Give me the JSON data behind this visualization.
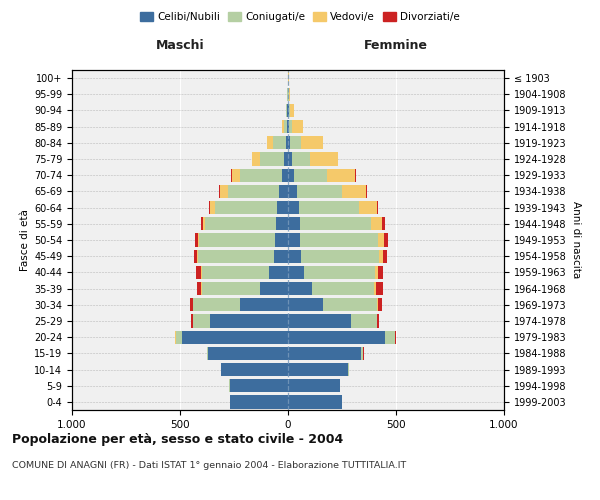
{
  "age_groups": [
    "0-4",
    "5-9",
    "10-14",
    "15-19",
    "20-24",
    "25-29",
    "30-34",
    "35-39",
    "40-44",
    "45-49",
    "50-54",
    "55-59",
    "60-64",
    "65-69",
    "70-74",
    "75-79",
    "80-84",
    "85-89",
    "90-94",
    "95-99",
    "100+"
  ],
  "birth_years": [
    "1999-2003",
    "1994-1998",
    "1989-1993",
    "1984-1988",
    "1979-1983",
    "1974-1978",
    "1969-1973",
    "1964-1968",
    "1959-1963",
    "1954-1958",
    "1949-1953",
    "1944-1948",
    "1939-1943",
    "1934-1938",
    "1929-1933",
    "1924-1928",
    "1919-1923",
    "1914-1918",
    "1909-1913",
    "1904-1908",
    "≤ 1903"
  ],
  "male": {
    "celibi": [
      270,
      270,
      310,
      370,
      490,
      360,
      220,
      130,
      90,
      65,
      60,
      55,
      50,
      40,
      30,
      20,
      10,
      5,
      3,
      2,
      2
    ],
    "coniugati": [
      0,
      1,
      2,
      5,
      30,
      80,
      220,
      270,
      310,
      350,
      350,
      330,
      290,
      240,
      190,
      110,
      60,
      15,
      5,
      1,
      0
    ],
    "vedovi": [
      0,
      0,
      0,
      0,
      2,
      2,
      2,
      3,
      5,
      5,
      8,
      10,
      20,
      35,
      40,
      35,
      25,
      10,
      3,
      1,
      0
    ],
    "divorziati": [
      0,
      0,
      0,
      0,
      2,
      5,
      10,
      20,
      20,
      15,
      12,
      10,
      5,
      3,
      2,
      1,
      0,
      0,
      0,
      0,
      0
    ]
  },
  "female": {
    "nubili": [
      250,
      240,
      280,
      340,
      450,
      290,
      160,
      110,
      75,
      60,
      55,
      55,
      50,
      40,
      30,
      20,
      10,
      5,
      5,
      2,
      2
    ],
    "coniugate": [
      0,
      1,
      2,
      8,
      45,
      120,
      250,
      290,
      330,
      360,
      360,
      330,
      280,
      210,
      150,
      80,
      50,
      15,
      5,
      2,
      0
    ],
    "vedove": [
      0,
      0,
      0,
      1,
      2,
      3,
      5,
      8,
      10,
      20,
      30,
      50,
      80,
      110,
      130,
      130,
      100,
      50,
      20,
      5,
      1
    ],
    "divorziate": [
      0,
      0,
      0,
      1,
      3,
      8,
      20,
      30,
      25,
      20,
      18,
      15,
      8,
      5,
      3,
      2,
      1,
      0,
      0,
      0,
      0
    ]
  },
  "colors": {
    "celibi": "#3d6d9e",
    "coniugati": "#b5cfa3",
    "vedovi": "#f5c96a",
    "divorziati": "#cc2222"
  },
  "title": "Popolazione per età, sesso e stato civile - 2004",
  "subtitle": "COMUNE DI ANAGNI (FR) - Dati ISTAT 1° gennaio 2004 - Elaborazione TUTTITALIA.IT",
  "xlabel_left": "Maschi",
  "xlabel_right": "Femmine",
  "ylabel_left": "Fasce di età",
  "ylabel_right": "Anni di nascita",
  "xlim": 1000,
  "xticks": [
    -1000,
    -500,
    0,
    500,
    1000
  ],
  "xticklabels": [
    "1.000",
    "500",
    "0",
    "500",
    "1.000"
  ],
  "bg_color": "#ffffff",
  "plot_bg": "#f0f0f0"
}
